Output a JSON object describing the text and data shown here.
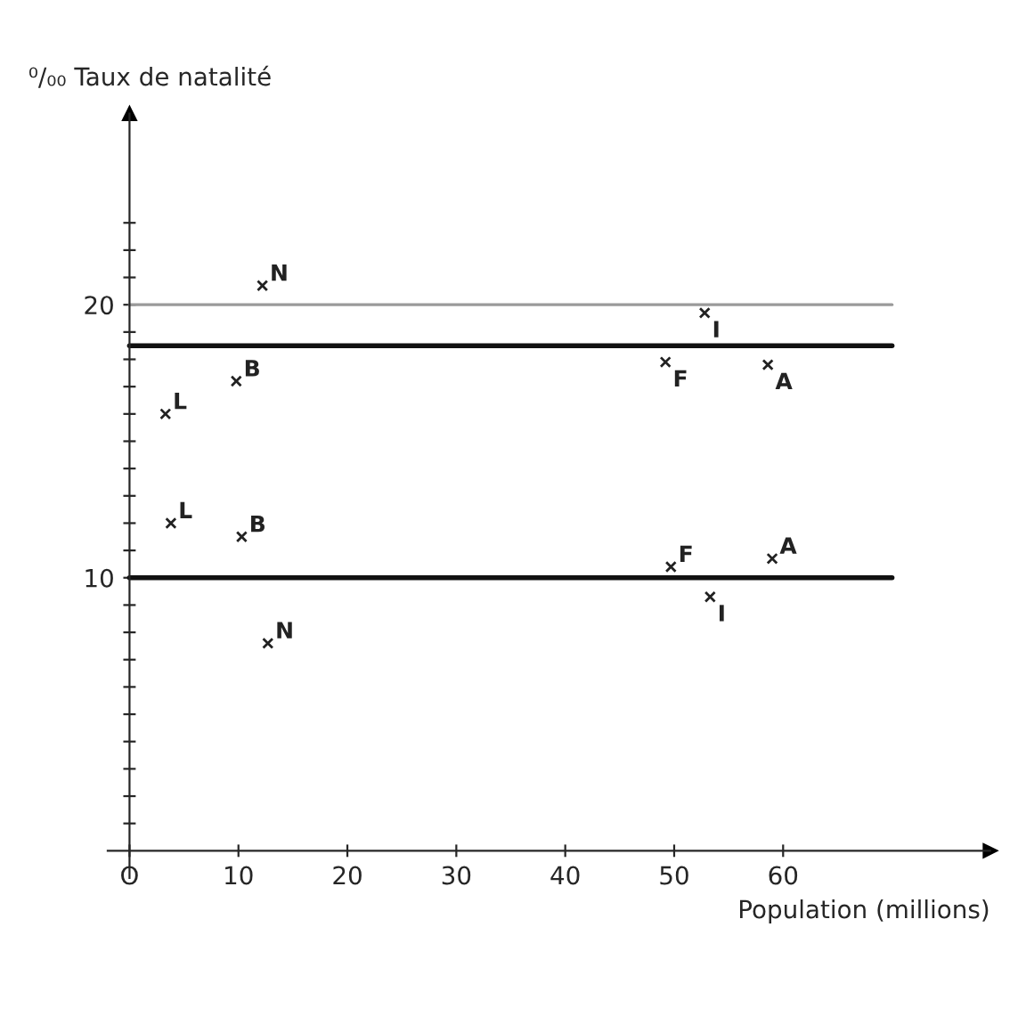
{
  "chart_data": {
    "type": "scatter",
    "ylabel": "⁰/₀₀ Taux de natalité",
    "xlabel": "Population (millions)",
    "xlim": [
      -2,
      79
    ],
    "ylim": [
      -1,
      27
    ],
    "xticks": [
      {
        "value": 0,
        "label": "O"
      },
      10,
      20,
      30,
      40,
      50,
      60
    ],
    "yticks": [
      {
        "value": 1,
        "label": null
      },
      {
        "value": 2,
        "label": null
      },
      {
        "value": 3,
        "label": null
      },
      {
        "value": 4,
        "label": null
      },
      {
        "value": 5,
        "label": null
      },
      {
        "value": 6,
        "label": null
      },
      {
        "value": 7,
        "label": null
      },
      {
        "value": 8,
        "label": null
      },
      {
        "value": 9,
        "label": null
      },
      10,
      {
        "value": 11,
        "label": null
      },
      {
        "value": 12,
        "label": null
      },
      {
        "value": 13,
        "label": null
      },
      {
        "value": 14,
        "label": null
      },
      {
        "value": 15,
        "label": null
      },
      {
        "value": 16,
        "label": null
      },
      {
        "value": 17,
        "label": null
      },
      {
        "value": 18,
        "label": null
      },
      {
        "value": 19,
        "label": null
      },
      20,
      {
        "value": 21,
        "label": null
      },
      {
        "value": 22,
        "label": null
      },
      {
        "value": 23,
        "label": null
      }
    ],
    "marker": "cross",
    "series": [
      {
        "color": "#222222",
        "x": [
          12.2,
          52.8,
          9.8,
          3.3,
          49.2,
          58.6
        ],
        "values": [
          20.7,
          19.7,
          17.2,
          16.0,
          17.9,
          17.8
        ],
        "value_labels": [
          "N",
          "I",
          "B",
          "L",
          "F",
          "A"
        ]
      },
      {
        "color": "#222222",
        "x": [
          3.8,
          10.3,
          49.7,
          59.0,
          53.3,
          12.7
        ],
        "values": [
          12.0,
          11.5,
          10.4,
          10.7,
          9.3,
          7.6
        ],
        "value_labels": [
          "L",
          "B",
          "F",
          "A",
          "I",
          "N"
        ]
      }
    ],
    "ref_lines": [
      {
        "axis": "y",
        "value": 20,
        "color": "#9a9a9a"
      },
      {
        "axis": "y",
        "value": 18.5,
        "color": "#111111"
      },
      {
        "axis": "y",
        "value": 10,
        "color": "#111111"
      }
    ]
  }
}
